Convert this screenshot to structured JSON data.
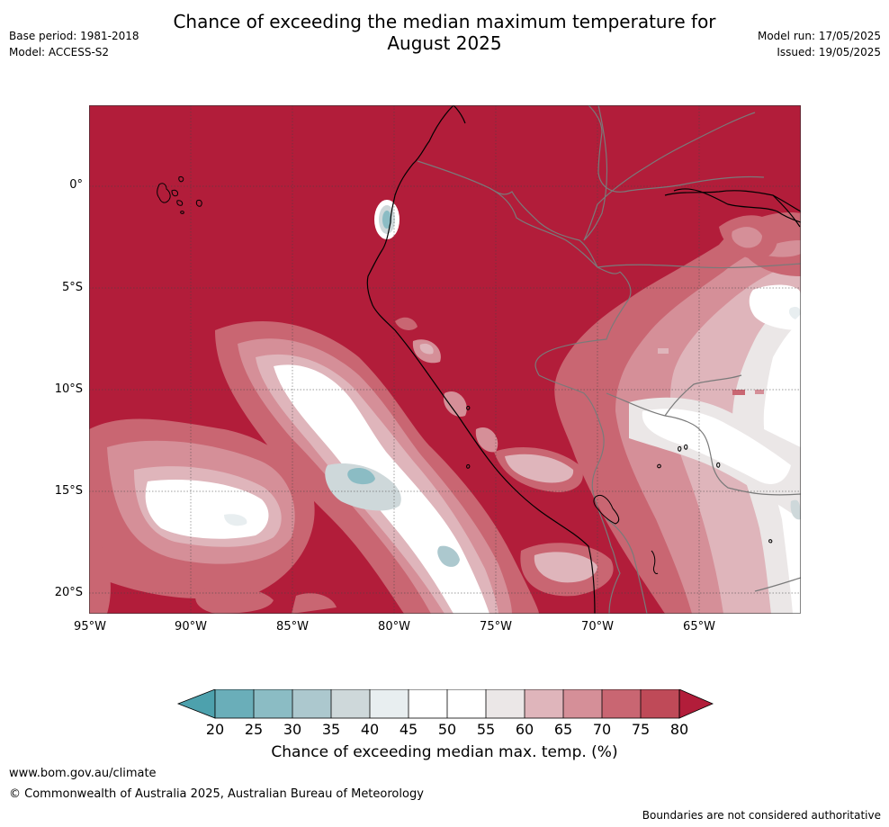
{
  "header": {
    "title_line1": "Chance of exceeding the median maximum temperature for",
    "title_line2": "August 2025",
    "base_period": "Base period: 1981-2018",
    "model": "Model: ACCESS-S2",
    "model_run": "Model run: 17/05/2025",
    "issued": "Issued: 19/05/2025"
  },
  "map": {
    "lat_labels": [
      "0°",
      "5°S",
      "10°S",
      "15°S",
      "20°S"
    ],
    "lon_labels": [
      "95°W",
      "90°W",
      "85°W",
      "80°W",
      "75°W",
      "70°W",
      "65°W"
    ],
    "background_color": "#b21d3a",
    "coast_color": "#000000",
    "border_color": "#7a7a7a"
  },
  "colorbar": {
    "ticks": [
      "20",
      "25",
      "30",
      "35",
      "40",
      "45",
      "50",
      "55",
      "60",
      "65",
      "70",
      "75",
      "80"
    ],
    "colors": [
      "#4da1ad",
      "#6aaeb9",
      "#8bbcc4",
      "#acc8ce",
      "#ced8da",
      "#e8eef0",
      "#ffffff",
      "#ffffff",
      "#ebe7e7",
      "#dfb5bb",
      "#d58f98",
      "#c96672",
      "#bf4a58",
      "#b21d3a"
    ],
    "label": "Chance of exceeding median max. temp. (%)"
  },
  "footer": {
    "url": "www.bom.gov.au/climate",
    "copyright": "© Commonwealth of Australia 2025, Australian Bureau of Meteorology",
    "note": "Boundaries are not considered authoritative"
  }
}
